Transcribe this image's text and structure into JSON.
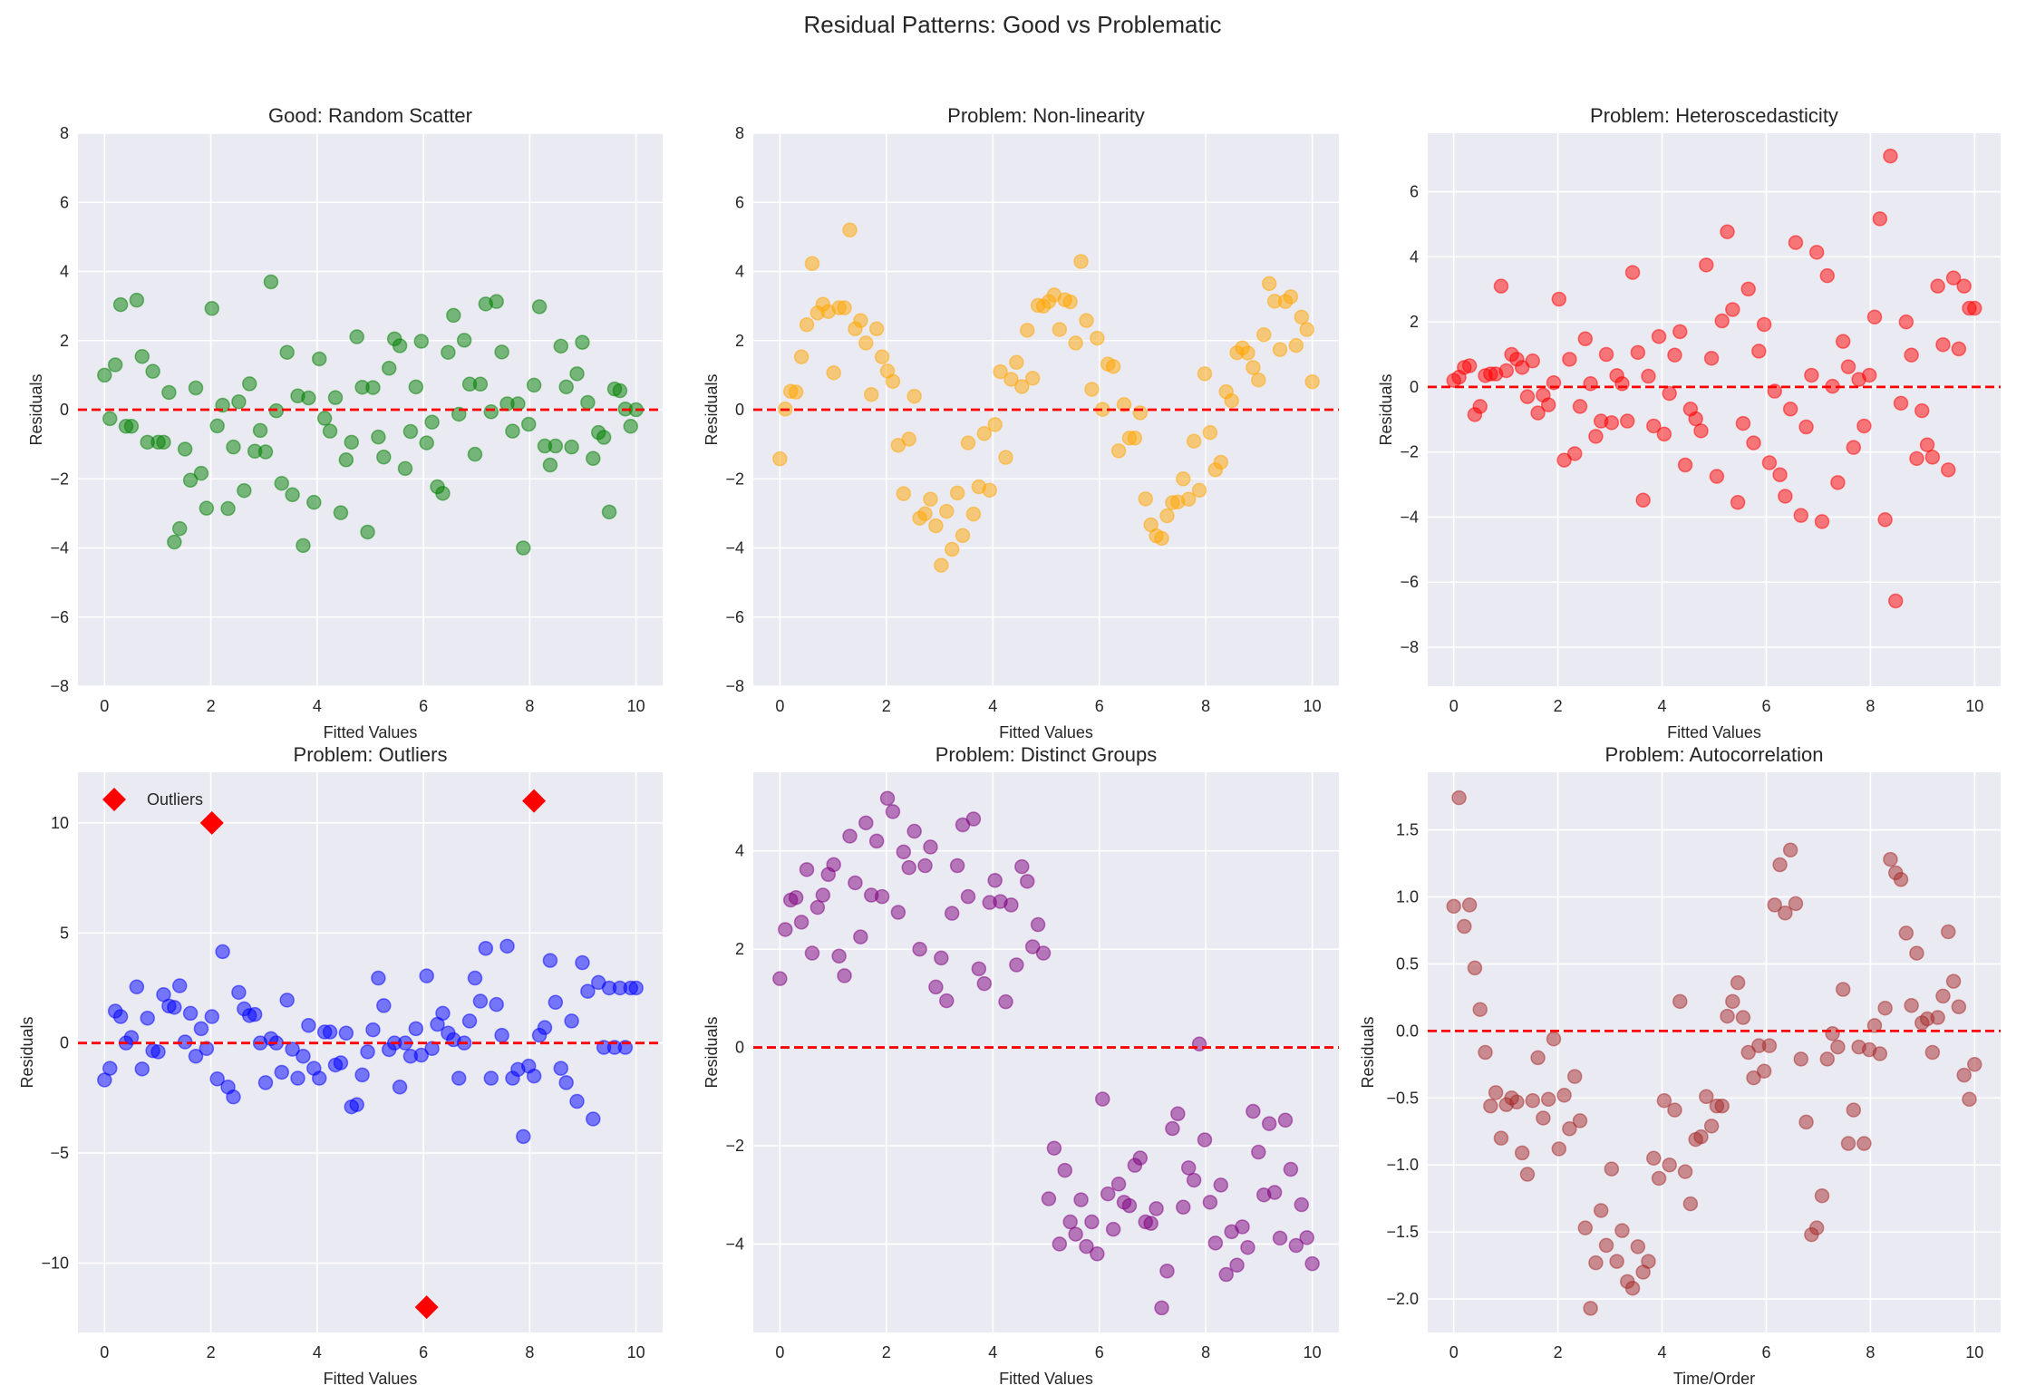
{
  "figure": {
    "suptitle": "Residual Patterns: Good vs Problematic"
  },
  "chart_data": [
    {
      "type": "scatter",
      "title": "Good: Random Scatter",
      "xlabel": "Fitted Values",
      "ylabel": "Residuals",
      "xlim": [
        -0.5,
        10.5
      ],
      "ylim": [
        -8,
        8
      ],
      "xticks": [
        0,
        2,
        4,
        6,
        8,
        10
      ],
      "yticks": [
        -8,
        -6,
        -4,
        -2,
        0,
        2,
        4,
        6,
        8
      ],
      "ytick_labels": [
        "−8",
        "−6",
        "−4",
        "−2",
        "0",
        "2",
        "4",
        "6",
        "8"
      ],
      "grid": true,
      "color": "#008000",
      "alpha": 0.5,
      "reference_line": {
        "y": 0,
        "color": "#ff0000",
        "style": "dashed"
      },
      "x_from": 0,
      "x_to": 10,
      "y": [
        1.0,
        -0.26,
        1.3,
        3.04,
        -0.48,
        -0.48,
        3.17,
        1.54,
        -0.94,
        1.11,
        -0.94,
        -0.94,
        0.5,
        -3.83,
        -3.44,
        -1.14,
        -2.04,
        0.63,
        -1.84,
        -2.85,
        2.93,
        -0.47,
        0.13,
        -2.86,
        -1.08,
        0.23,
        -2.34,
        0.75,
        -1.2,
        -0.6,
        -1.22,
        3.7,
        -0.03,
        -2.13,
        1.66,
        -2.46,
        0.4,
        -3.93,
        0.34,
        -2.68,
        1.47,
        -0.25,
        -0.62,
        0.35,
        -2.98,
        -1.45,
        -0.94,
        2.11,
        0.65,
        -3.54,
        0.64,
        -0.79,
        -1.37,
        1.2,
        2.05,
        1.85,
        -1.7,
        -0.63,
        0.66,
        1.98,
        -0.96,
        -0.36,
        -2.23,
        -2.42,
        1.66,
        2.73,
        -0.13,
        2.01,
        0.74,
        -1.29,
        0.74,
        3.06,
        -0.06,
        3.13,
        1.67,
        0.17,
        -0.62,
        0.17,
        -4.0,
        -0.42,
        0.71,
        2.98,
        -1.05,
        -1.6,
        -1.05,
        1.84,
        0.66,
        -1.08,
        1.04,
        1.95,
        0.21,
        -1.41,
        -0.66,
        -0.8,
        -2.96,
        0.6,
        0.55,
        0.02,
        -0.48,
        0.0
      ]
    },
    {
      "type": "scatter",
      "title": "Problem: Non-linearity",
      "xlabel": "Fitted Values",
      "ylabel": "Residuals",
      "xlim": [
        -0.5,
        10.5
      ],
      "ylim": [
        -8,
        8
      ],
      "xticks": [
        0,
        2,
        4,
        6,
        8,
        10
      ],
      "yticks": [
        -8,
        -6,
        -4,
        -2,
        0,
        2,
        4,
        6,
        8
      ],
      "ytick_labels": [
        "−8",
        "−6",
        "−4",
        "−2",
        "0",
        "2",
        "4",
        "6",
        "8"
      ],
      "grid": true,
      "color": "#ffa500",
      "alpha": 0.5,
      "reference_line": {
        "y": 0,
        "color": "#ff0000",
        "style": "dashed"
      },
      "x_from": 0,
      "x_to": 10,
      "y": [
        -1.42,
        0.02,
        0.53,
        0.51,
        1.53,
        2.46,
        4.23,
        2.8,
        3.05,
        2.84,
        1.07,
        2.95,
        2.95,
        5.2,
        2.34,
        2.58,
        1.93,
        0.44,
        2.34,
        1.53,
        1.12,
        0.82,
        -1.03,
        -2.43,
        -0.85,
        0.39,
        -3.14,
        -3.01,
        -2.59,
        -3.36,
        -4.5,
        -2.94,
        -4.04,
        -2.41,
        -3.64,
        -0.96,
        -3.02,
        -2.23,
        -0.69,
        -2.33,
        -0.43,
        1.1,
        -1.38,
        0.88,
        1.37,
        0.67,
        2.3,
        0.91,
        3.02,
        3.0,
        3.13,
        3.32,
        2.32,
        3.18,
        3.12,
        1.93,
        4.29,
        2.58,
        0.59,
        2.07,
        0.01,
        1.32,
        1.25,
        -1.19,
        0.15,
        -0.82,
        -0.82,
        -0.09,
        -2.58,
        -3.33,
        -3.65,
        -3.72,
        -3.07,
        -2.69,
        -2.67,
        -2.0,
        -2.59,
        -0.91,
        -2.33,
        1.04,
        -0.66,
        -1.74,
        -1.52,
        0.52,
        0.26,
        1.65,
        1.79,
        1.64,
        1.22,
        0.86,
        2.17,
        3.65,
        3.14,
        1.74,
        3.13,
        3.27,
        1.86,
        2.68,
        2.32,
        0.81
      ]
    },
    {
      "type": "scatter",
      "title": "Problem: Heteroscedasticity",
      "xlabel": "Fitted Values",
      "ylabel": "Residuals",
      "xlim": [
        -0.5,
        10.5
      ],
      "ylim": [
        -9.2,
        7.8
      ],
      "xticks": [
        0,
        2,
        4,
        6,
        8,
        10
      ],
      "yticks": [
        -8,
        -6,
        -4,
        -2,
        0,
        2,
        4,
        6
      ],
      "ytick_labels": [
        "−8",
        "−6",
        "−4",
        "−2",
        "0",
        "2",
        "4",
        "6"
      ],
      "grid": true,
      "color": "#ff0000",
      "alpha": 0.5,
      "reference_line": {
        "y": 0,
        "color": "#ff0000",
        "style": "dashed"
      },
      "x_from": 0,
      "x_to": 10,
      "y": [
        0.2,
        0.3,
        0.6,
        0.65,
        -0.85,
        -0.6,
        0.35,
        0.4,
        0.4,
        3.1,
        0.5,
        1.0,
        0.85,
        0.6,
        -0.3,
        0.8,
        -0.8,
        -0.25,
        -0.55,
        0.13,
        2.7,
        -2.25,
        0.85,
        -2.05,
        -0.6,
        1.48,
        0.1,
        -1.52,
        -1.05,
        1.0,
        -1.1,
        0.35,
        0.1,
        -1.05,
        3.52,
        1.06,
        -3.48,
        0.33,
        -1.2,
        1.55,
        -1.45,
        -0.2,
        0.98,
        1.7,
        -2.4,
        -0.68,
        -0.98,
        -1.35,
        3.75,
        0.88,
        -2.75,
        2.03,
        4.77,
        2.38,
        -3.55,
        -1.12,
        3.01,
        -1.72,
        1.1,
        1.92,
        -2.33,
        -0.13,
        -2.7,
        -3.36,
        -0.68,
        4.44,
        -3.95,
        -1.23,
        0.36,
        4.14,
        -4.14,
        3.42,
        0.02,
        -2.94,
        1.4,
        0.62,
        -1.86,
        0.23,
        -1.2,
        0.36,
        2.15,
        5.17,
        -4.08,
        7.1,
        -6.58,
        -0.5,
        2.0,
        0.98,
        -2.2,
        -0.73,
        -1.78,
        -2.16,
        3.1,
        1.3,
        -2.55,
        3.35,
        1.17,
        3.1,
        2.42,
        2.42
      ]
    },
    {
      "type": "scatter",
      "title": "Problem: Outliers",
      "xlabel": "Fitted Values",
      "ylabel": "Residuals",
      "xlim": [
        -0.5,
        10.5
      ],
      "ylim": [
        -13.15,
        12.3
      ],
      "xticks": [
        0,
        2,
        4,
        6,
        8,
        10
      ],
      "yticks": [
        -10,
        -5,
        0,
        5,
        10
      ],
      "ytick_labels": [
        "−10",
        "−5",
        "0",
        "5",
        "10"
      ],
      "grid": true,
      "color": "#0000ff",
      "alpha": 0.5,
      "reference_line": {
        "y": 0,
        "color": "#ff0000",
        "style": "dashed"
      },
      "x_from": 0,
      "x_to": 10,
      "y": [
        -1.68,
        -1.15,
        1.45,
        1.2,
        0.0,
        0.25,
        2.55,
        -1.18,
        1.13,
        -0.35,
        -0.4,
        2.2,
        1.68,
        1.62,
        2.6,
        0.05,
        1.35,
        -0.6,
        0.65,
        -0.25,
        1.2,
        -1.63,
        4.15,
        -2.0,
        -2.45,
        2.3,
        1.55,
        1.25,
        1.3,
        0.0,
        -1.8,
        0.2,
        0.0,
        -1.33,
        1.95,
        -0.28,
        -1.6,
        -0.6,
        0.8,
        -1.15,
        -1.6,
        0.5,
        0.5,
        -1.0,
        -0.9,
        0.45,
        -2.9,
        -2.8,
        -1.45,
        -0.4,
        0.6,
        2.95,
        1.7,
        -0.3,
        0.0,
        -2.0,
        0.0,
        -0.6,
        0.65,
        -0.55,
        3.05,
        -0.25,
        0.85,
        1.35,
        0.45,
        0.15,
        -1.6,
        0.0,
        1.0,
        2.95,
        1.9,
        4.3,
        -1.6,
        1.75,
        0.35,
        4.4,
        -1.6,
        -1.2,
        -4.25,
        -1.05,
        -1.5,
        0.35,
        0.7,
        3.75,
        1.85,
        -1.15,
        -1.8,
        1.0,
        -2.65,
        3.65,
        2.35,
        -3.45,
        2.75,
        -0.2,
        2.5,
        -0.2,
        2.5,
        -0.2,
        2.5,
        2.5
      ],
      "outliers": {
        "label": "Outliers",
        "marker": "diamond",
        "color": "#ff0000",
        "points": [
          {
            "x": 2.02,
            "y": 10.0
          },
          {
            "x": 6.06,
            "y": -12.0
          },
          {
            "x": 8.08,
            "y": 11.0
          }
        ]
      },
      "legend": {
        "entries": [
          "Outliers"
        ],
        "placement": "top-left"
      }
    },
    {
      "type": "scatter",
      "title": "Problem: Distinct Groups",
      "xlabel": "Fitted Values",
      "ylabel": "Residuals",
      "xlim": [
        -0.5,
        10.5
      ],
      "ylim": [
        -5.8,
        5.6
      ],
      "xticks": [
        0,
        2,
        4,
        6,
        8,
        10
      ],
      "yticks": [
        -4,
        -2,
        0,
        2,
        4
      ],
      "ytick_labels": [
        "−4",
        "−2",
        "0",
        "2",
        "4"
      ],
      "grid": true,
      "color": "#800080",
      "alpha": 0.5,
      "reference_line": {
        "y": 0,
        "color": "#ff0000",
        "style": "dashed"
      },
      "x_from": 0,
      "x_to": 10,
      "y": [
        1.4,
        2.4,
        3.0,
        3.05,
        2.55,
        3.62,
        1.92,
        2.85,
        3.1,
        3.52,
        3.72,
        1.86,
        1.46,
        4.3,
        3.35,
        2.25,
        4.57,
        3.1,
        4.2,
        3.07,
        5.07,
        4.8,
        2.75,
        3.98,
        3.66,
        4.4,
        2.0,
        3.7,
        4.08,
        1.23,
        1.82,
        0.95,
        2.73,
        3.7,
        4.53,
        3.07,
        4.65,
        1.6,
        1.3,
        2.95,
        3.4,
        2.97,
        0.93,
        2.9,
        1.68,
        3.68,
        3.38,
        2.05,
        2.5,
        1.92,
        -3.08,
        -2.05,
        -4.0,
        -2.5,
        -3.55,
        -3.8,
        -3.1,
        -4.05,
        -3.55,
        -4.2,
        -1.05,
        -2.98,
        -3.7,
        -2.78,
        -3.15,
        -3.22,
        -2.4,
        -2.25,
        -3.55,
        -3.58,
        -3.28,
        -5.3,
        -4.55,
        -1.65,
        -1.35,
        -3.25,
        -2.45,
        -2.7,
        0.07,
        -1.88,
        -3.15,
        -3.98,
        -2.8,
        -4.62,
        -3.75,
        -4.43,
        -3.65,
        -4.07,
        -1.3,
        -2.13,
        -3.0,
        -1.55,
        -2.95,
        -3.88,
        -1.48,
        -2.48,
        -4.03,
        -3.2,
        -3.87,
        -4.4
      ]
    },
    {
      "type": "scatter",
      "title": "Problem: Autocorrelation",
      "xlabel": "Time/Order",
      "ylabel": "Residuals",
      "xlim": [
        -0.5,
        10.5
      ],
      "ylim": [
        -2.25,
        1.93
      ],
      "xticks": [
        0,
        2,
        4,
        6,
        8,
        10
      ],
      "yticks": [
        -2.0,
        -1.5,
        -1.0,
        -0.5,
        0.0,
        0.5,
        1.0,
        1.5
      ],
      "ytick_labels": [
        "−2.0",
        "−1.5",
        "−1.0",
        "−0.5",
        "0.0",
        "0.5",
        "1.0",
        "1.5"
      ],
      "grid": true,
      "color": "#a52a2a",
      "alpha": 0.5,
      "reference_line": {
        "y": 0,
        "color": "#ff0000",
        "style": "dashed"
      },
      "x_from": 0,
      "x_to": 10,
      "y": [
        0.93,
        1.74,
        0.78,
        0.94,
        0.47,
        0.16,
        -0.16,
        -0.56,
        -0.46,
        -0.8,
        -0.55,
        -0.5,
        -0.53,
        -0.91,
        -1.07,
        -0.52,
        -0.2,
        -0.65,
        -0.51,
        -0.06,
        -0.88,
        -0.48,
        -0.73,
        -0.34,
        -0.67,
        -1.47,
        -2.07,
        -1.73,
        -1.34,
        -1.6,
        -1.03,
        -1.72,
        -1.49,
        -1.87,
        -1.92,
        -1.61,
        -1.8,
        -1.72,
        -0.95,
        -1.1,
        -0.52,
        -1.0,
        -0.59,
        0.22,
        -1.05,
        -1.29,
        -0.81,
        -0.79,
        -0.49,
        -0.71,
        -0.56,
        -0.56,
        0.11,
        0.22,
        0.36,
        0.1,
        -0.16,
        -0.35,
        -0.11,
        -0.3,
        -0.11,
        0.94,
        1.24,
        0.88,
        1.35,
        0.95,
        -0.21,
        -0.68,
        -1.52,
        -1.47,
        -1.23,
        -0.21,
        -0.02,
        -0.12,
        0.31,
        -0.84,
        -0.59,
        -0.12,
        -0.84,
        -0.14,
        0.04,
        -0.17,
        0.17,
        1.28,
        1.18,
        1.13,
        0.73,
        0.19,
        0.58,
        0.06,
        0.09,
        -0.16,
        0.1,
        0.26,
        0.74,
        0.37,
        0.18,
        -0.33,
        -0.51,
        -0.25
      ]
    }
  ]
}
